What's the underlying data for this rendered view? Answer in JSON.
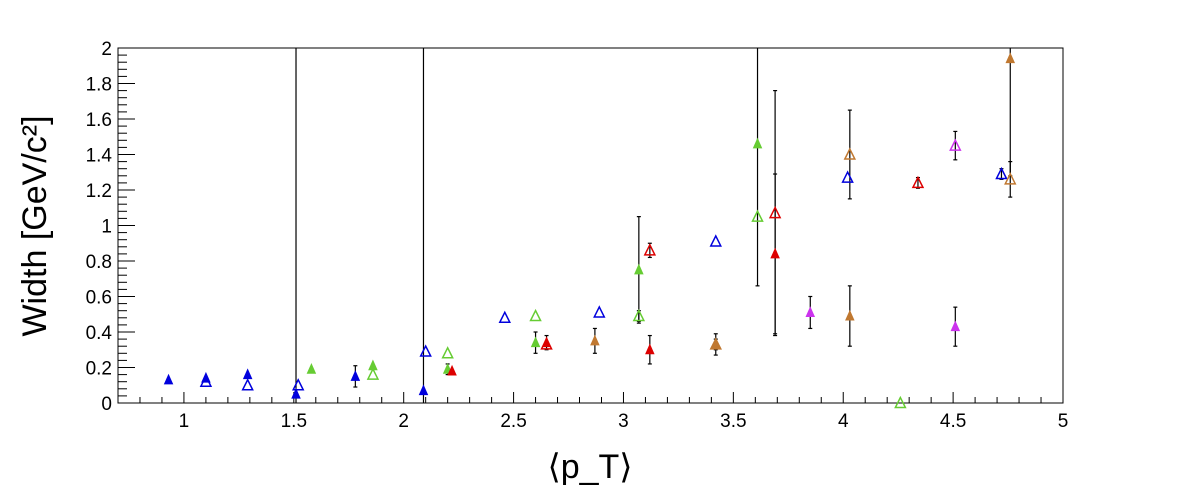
{
  "chart_data": {
    "type": "scatter",
    "xlabel": "⟨p_T⟩",
    "ylabel": "Width [GeV/c²]",
    "xlim": [
      0.7,
      5.0
    ],
    "ylim": [
      0,
      2.0
    ],
    "xticks": [
      1,
      1.5,
      2,
      2.5,
      3,
      3.5,
      4,
      4.5,
      5
    ],
    "xtick_labels": [
      "1",
      "1.5",
      "2",
      "2.5",
      "3",
      "3.5",
      "4",
      "4.5",
      "5"
    ],
    "yticks": [
      0,
      0.2,
      0.4,
      0.6,
      0.8,
      1.0,
      1.2,
      1.4,
      1.6,
      1.8,
      2.0
    ],
    "ytick_labels": [
      "0",
      "0.2",
      "0.4",
      "0.6",
      "0.8",
      "1",
      "1.2",
      "1.4",
      "1.6",
      "1.8",
      "2"
    ],
    "grid": false,
    "legend": "none",
    "series": [
      {
        "color": "#0000dd",
        "marker": "open-triangle",
        "points": [
          {
            "x": 1.1,
            "y": 0.12,
            "err": 0
          },
          {
            "x": 1.29,
            "y": 0.1,
            "err": 0
          },
          {
            "x": 1.52,
            "y": 0.1,
            "err": 0
          },
          {
            "x": 2.1,
            "y": 0.29,
            "err": 0
          },
          {
            "x": 2.46,
            "y": 0.48,
            "err": 0
          },
          {
            "x": 2.89,
            "y": 0.51,
            "err": 0
          },
          {
            "x": 3.42,
            "y": 0.91,
            "err": 0
          },
          {
            "x": 4.02,
            "y": 1.27,
            "err": 0
          },
          {
            "x": 4.72,
            "y": 1.29,
            "err": 0.03
          }
        ]
      },
      {
        "color": "#0000dd",
        "marker": "filled-triangle",
        "points": [
          {
            "x": 0.93,
            "y": 0.13,
            "err": 0
          },
          {
            "x": 1.1,
            "y": 0.14,
            "err": 0
          },
          {
            "x": 1.29,
            "y": 0.16,
            "err": 0
          },
          {
            "x": 1.51,
            "y": 0.05,
            "err": 1.95
          },
          {
            "x": 1.78,
            "y": 0.15,
            "err": 0.06
          },
          {
            "x": 2.09,
            "y": 0.07,
            "err": 1.93
          }
        ]
      },
      {
        "color": "#66cc33",
        "marker": "open-triangle",
        "points": [
          {
            "x": 1.86,
            "y": 0.16,
            "err": 0
          },
          {
            "x": 2.2,
            "y": 0.28,
            "err": 0
          },
          {
            "x": 2.6,
            "y": 0.49,
            "err": 0
          },
          {
            "x": 3.07,
            "y": 0.49,
            "err": 0.03
          },
          {
            "x": 3.61,
            "y": 1.05,
            "err": 0
          },
          {
            "x": 4.26,
            "y": 0.0,
            "err": 0
          }
        ]
      },
      {
        "color": "#66cc33",
        "marker": "filled-triangle",
        "points": [
          {
            "x": 1.58,
            "y": 0.19,
            "err": 0
          },
          {
            "x": 1.86,
            "y": 0.21,
            "err": 0
          },
          {
            "x": 2.2,
            "y": 0.19,
            "err": 0.03
          },
          {
            "x": 2.6,
            "y": 0.34,
            "err": 0.06
          },
          {
            "x": 3.07,
            "y": 0.75,
            "err": 0.3
          },
          {
            "x": 3.61,
            "y": 1.46,
            "err": 0.8
          }
        ]
      },
      {
        "color": "#dd0000",
        "marker": "open-triangle",
        "points": [
          {
            "x": 2.65,
            "y": 0.33,
            "err": 0
          },
          {
            "x": 3.12,
            "y": 0.86,
            "err": 0.04
          },
          {
            "x": 3.69,
            "y": 1.07,
            "err": 0.69
          },
          {
            "x": 4.34,
            "y": 1.24,
            "err": 0.03
          }
        ]
      },
      {
        "color": "#dd0000",
        "marker": "filled-triangle",
        "points": [
          {
            "x": 2.22,
            "y": 0.18,
            "err": 0
          },
          {
            "x": 2.65,
            "y": 0.34,
            "err": 0.04
          },
          {
            "x": 3.12,
            "y": 0.3,
            "err": 0.08
          },
          {
            "x": 3.69,
            "y": 0.84,
            "err": 0.45
          }
        ]
      },
      {
        "color": "#c07830",
        "marker": "open-triangle",
        "points": [
          {
            "x": 3.42,
            "y": 0.33,
            "err": 0.03
          },
          {
            "x": 4.03,
            "y": 1.4,
            "err": 0.25
          },
          {
            "x": 4.76,
            "y": 1.26,
            "err": 0.1
          }
        ]
      },
      {
        "color": "#c07830",
        "marker": "filled-triangle",
        "points": [
          {
            "x": 2.87,
            "y": 0.35,
            "err": 0.07
          },
          {
            "x": 3.42,
            "y": 0.33,
            "err": 0.06
          },
          {
            "x": 4.03,
            "y": 0.49,
            "err": 0.17
          },
          {
            "x": 4.76,
            "y": 1.94,
            "err": 0.66
          }
        ]
      },
      {
        "color": "#cc33ee",
        "marker": "open-triangle",
        "points": [
          {
            "x": 4.51,
            "y": 1.45,
            "err": 0.08
          }
        ]
      },
      {
        "color": "#cc33ee",
        "marker": "filled-triangle",
        "points": [
          {
            "x": 3.85,
            "y": 0.51,
            "err": 0.09
          },
          {
            "x": 4.51,
            "y": 0.43,
            "err": 0.11
          }
        ]
      }
    ]
  }
}
